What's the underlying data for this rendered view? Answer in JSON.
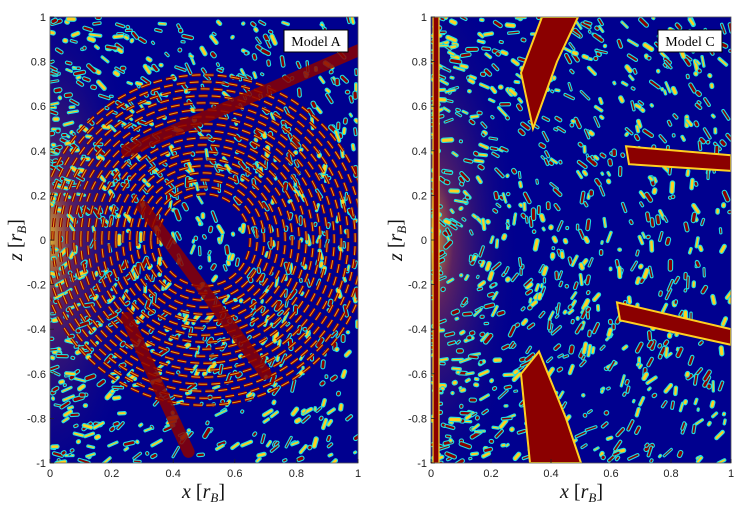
{
  "chart_data": [
    {
      "type": "heatmap",
      "annotation": "Model A",
      "xlabel": "x [r_B]",
      "ylabel": "z [r_B]",
      "xlim": [
        0,
        1
      ],
      "ylim": [
        -1,
        1
      ],
      "x_ticks": [
        "0",
        "0.2",
        "0.4",
        "0.6",
        "0.8",
        "1"
      ],
      "y_ticks": [
        "1",
        "0.8",
        "0.6",
        "0.4",
        "0.2",
        "0",
        "-0.2",
        "-0.4",
        "-0.6",
        "-0.8",
        "-1"
      ],
      "colormap": [
        "#00008f",
        "#0060ff",
        "#20e0e0",
        "#ffd020",
        "#ff6010",
        "#8b0000"
      ],
      "features": [
        {
          "kind": "concentric_stripes",
          "center": [
            0.5,
            0.0
          ],
          "radius_range": [
            0.15,
            0.55
          ]
        },
        {
          "kind": "ray",
          "from": [
            0.3,
            0.15
          ],
          "to": [
            0.7,
            -0.6
          ]
        },
        {
          "kind": "ray",
          "from": [
            0.25,
            0.4
          ],
          "to": [
            1.0,
            0.85
          ]
        },
        {
          "kind": "ray",
          "from": [
            0.25,
            -0.35
          ],
          "to": [
            0.45,
            -0.95
          ]
        }
      ]
    },
    {
      "type": "heatmap",
      "annotation": "Model C",
      "xlabel": "x [r_B]",
      "ylabel": "z [r_B]",
      "xlim": [
        0,
        1
      ],
      "ylim": [
        -1,
        1
      ],
      "x_ticks": [
        "0",
        "0.2",
        "0.4",
        "0.6",
        "0.8",
        "1"
      ],
      "y_ticks": [
        "1",
        "0.8",
        "0.6",
        "0.4",
        "0.2",
        "0",
        "-0.2",
        "-0.4",
        "-0.6",
        "-0.8",
        "-1"
      ],
      "colormap": [
        "#00008f",
        "#0060ff",
        "#20e0e0",
        "#ffd020",
        "#ff6010",
        "#8b0000"
      ],
      "features": [
        {
          "kind": "wedge",
          "points": [
            [
              0.3,
              0.75
            ],
            [
              0.37,
              1.0
            ],
            [
              0.49,
              1.0
            ],
            [
              0.42,
              0.8
            ],
            [
              0.34,
              0.5
            ]
          ]
        },
        {
          "kind": "wedge",
          "points": [
            [
              0.3,
              -0.6
            ],
            [
              0.33,
              -1.0
            ],
            [
              0.5,
              -1.0
            ],
            [
              0.45,
              -0.8
            ],
            [
              0.36,
              -0.5
            ]
          ]
        },
        {
          "kind": "band",
          "points": [
            [
              0.65,
              0.42
            ],
            [
              1.0,
              0.38
            ],
            [
              1.0,
              0.31
            ],
            [
              0.66,
              0.34
            ]
          ]
        },
        {
          "kind": "band",
          "points": [
            [
              0.62,
              -0.28
            ],
            [
              1.0,
              -0.4
            ],
            [
              1.0,
              -0.47
            ],
            [
              0.63,
              -0.36
            ]
          ]
        },
        {
          "kind": "edge_band",
          "x": 0.02
        }
      ]
    }
  ]
}
